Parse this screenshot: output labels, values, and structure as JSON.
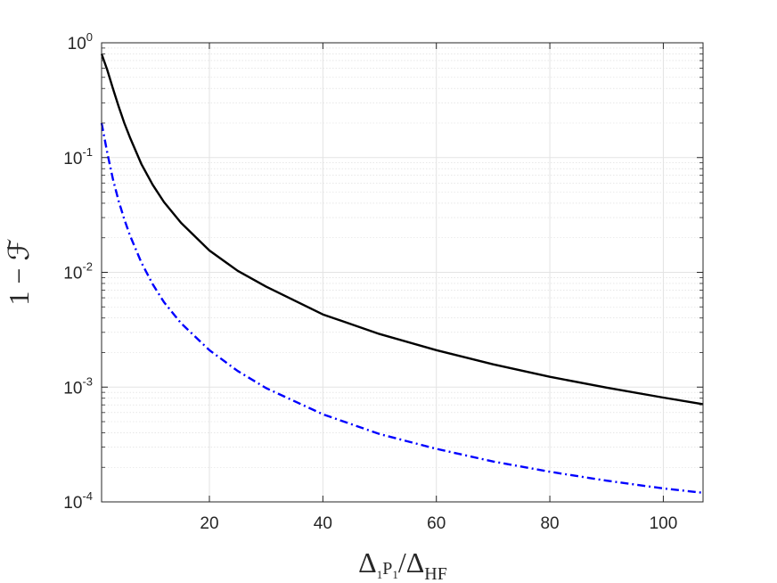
{
  "chart_data": {
    "type": "line",
    "title": "",
    "xlabel": {
      "base": "Δ",
      "sub_pre": "1",
      "sub_main": "P",
      "sub_post": "1",
      "sep": "/",
      "den_base": "Δ",
      "den_sub": "HF"
    },
    "ylabel": "1 − ℱ",
    "x_range": [
      1,
      107
    ],
    "y_range": [
      0.0001,
      1
    ],
    "y_scale": "log",
    "grid": true,
    "minor_grid": true,
    "legend": "none",
    "x_ticks": [
      20,
      40,
      60,
      80,
      100
    ],
    "y_ticks": [
      {
        "value": 1,
        "base": "10",
        "exp": "0"
      },
      {
        "value": 0.1,
        "base": "10",
        "exp": "-1"
      },
      {
        "value": 0.01,
        "base": "10",
        "exp": "-2"
      },
      {
        "value": 0.001,
        "base": "10",
        "exp": "-3"
      },
      {
        "value": 0.0001,
        "base": "10",
        "exp": "-4"
      }
    ],
    "series": [
      {
        "color": "#000000",
        "style": "solid",
        "x": [
          1,
          2,
          3,
          4,
          5,
          6,
          8,
          10,
          12,
          15,
          20,
          25,
          30,
          40,
          50,
          60,
          70,
          80,
          90,
          100,
          107
        ],
        "y": [
          0.8,
          0.58,
          0.4,
          0.28,
          0.2,
          0.15,
          0.088,
          0.058,
          0.041,
          0.027,
          0.0155,
          0.0103,
          0.0075,
          0.0043,
          0.0029,
          0.0021,
          0.00158,
          0.00123,
          0.00099,
          0.00081,
          0.00071
        ]
      },
      {
        "color": "#0000ff",
        "style": "dashdot",
        "x": [
          1,
          2,
          3,
          4,
          5,
          6,
          8,
          10,
          12,
          15,
          20,
          25,
          30,
          40,
          50,
          60,
          70,
          80,
          90,
          100,
          107
        ],
        "y": [
          0.2,
          0.11,
          0.065,
          0.042,
          0.029,
          0.021,
          0.0122,
          0.0079,
          0.0055,
          0.0036,
          0.0021,
          0.00138,
          0.00098,
          0.00058,
          0.00039,
          0.00029,
          0.000225,
          0.000183,
          0.000153,
          0.000131,
          0.00012
        ]
      }
    ]
  }
}
